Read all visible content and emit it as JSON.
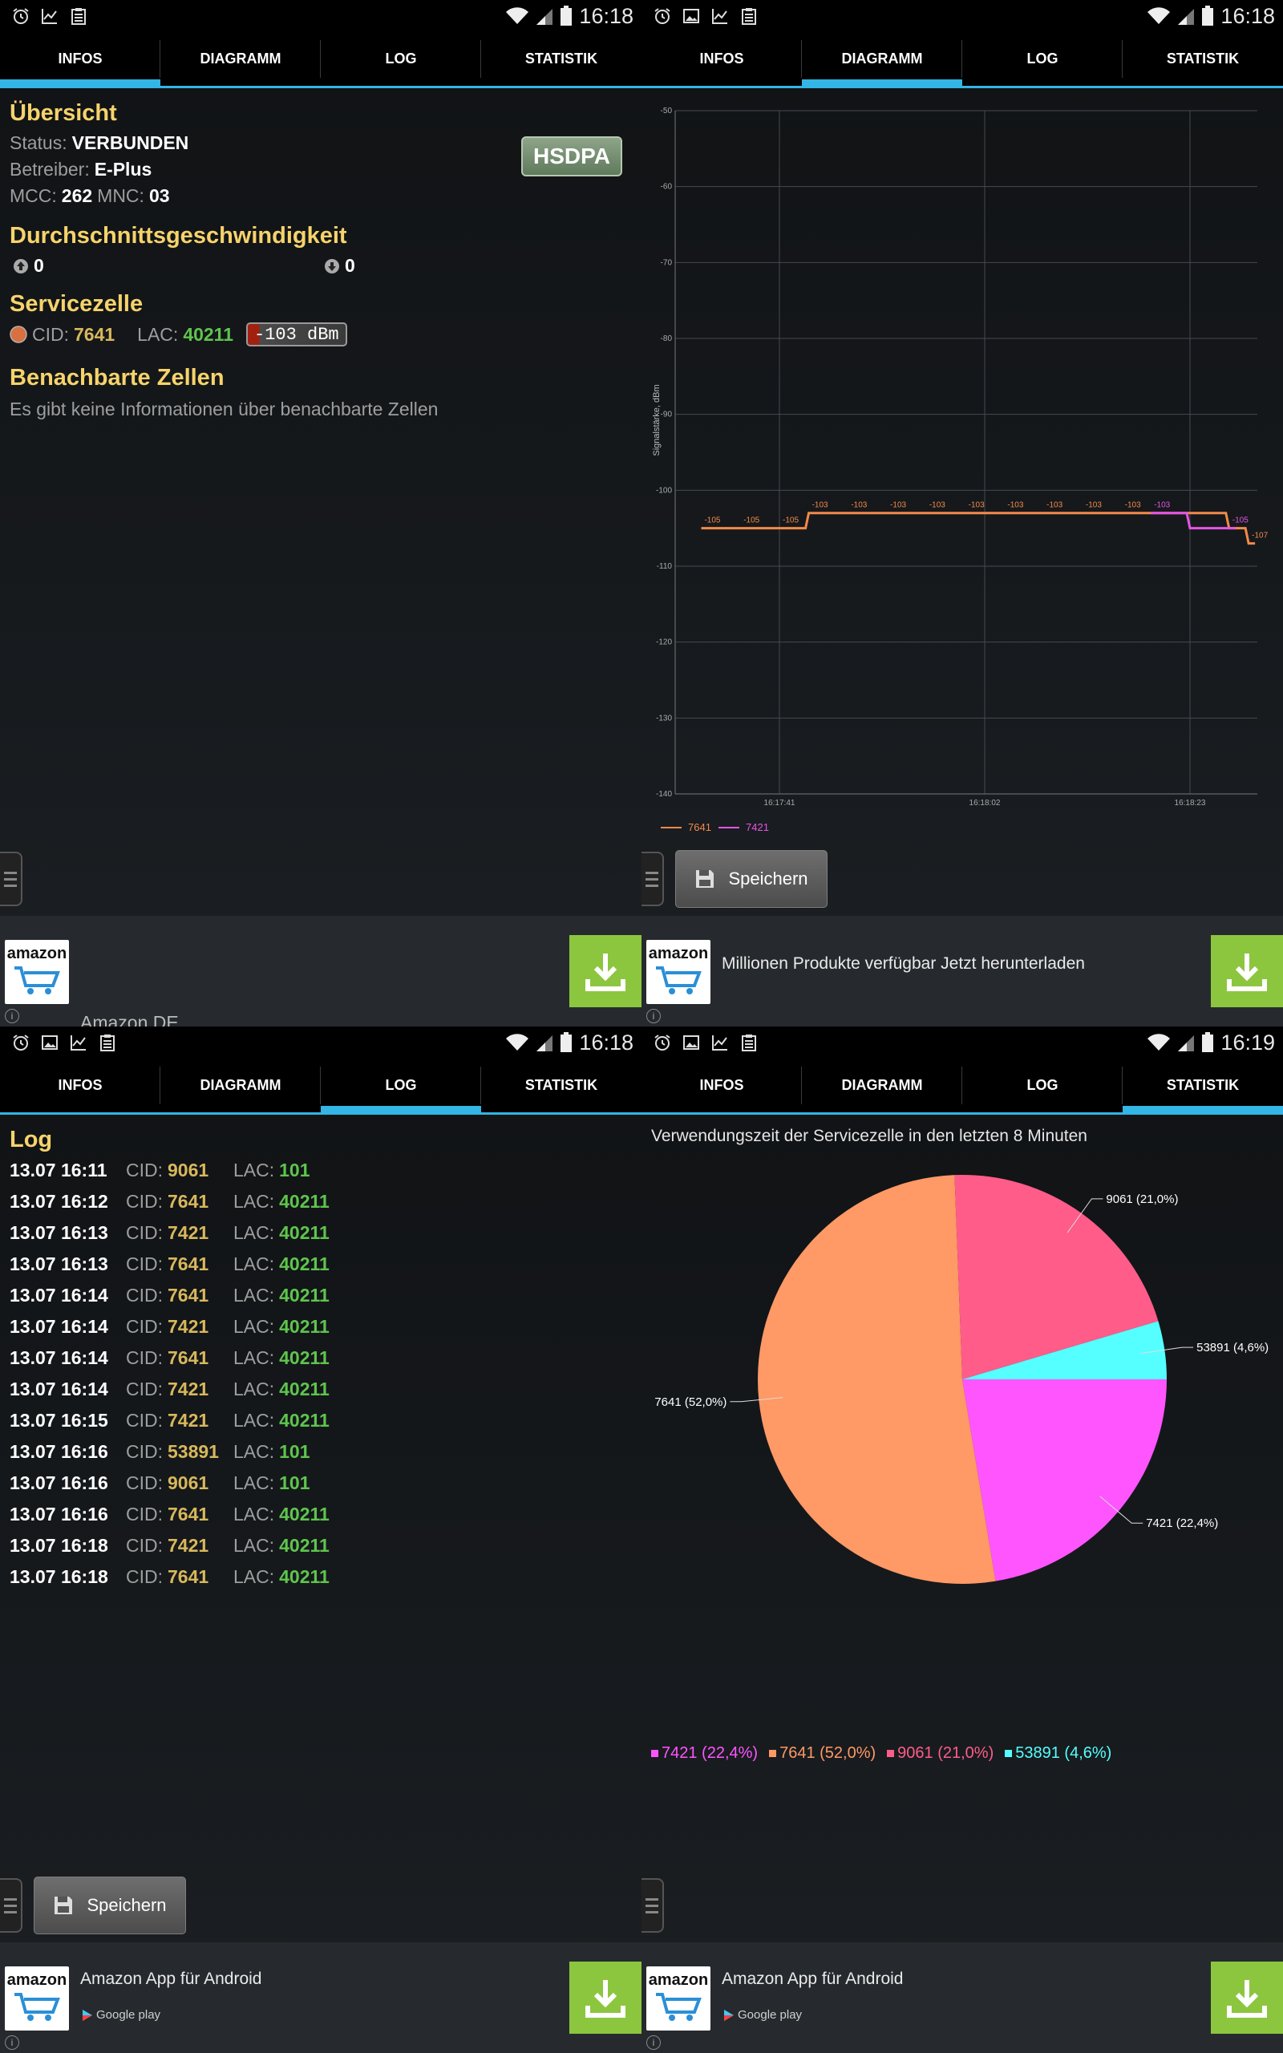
{
  "tabs": [
    "INFOS",
    "DIAGRAMM",
    "LOG",
    "STATISTIK"
  ],
  "status_bar_times": [
    "16:18",
    "16:18",
    "16:18",
    "16:19"
  ],
  "infos": {
    "overview_title": "Übersicht",
    "status_label": "Status:",
    "status_value": "VERBUNDEN",
    "operator_label": "Betreiber:",
    "operator_value": "E-Plus",
    "mcc_label": "MCC:",
    "mcc_value": "262",
    "mnc_label": "MNC:",
    "mnc_value": "03",
    "network_badge": "HSDPA",
    "speed_title": "Durchschnittsgeschwindigkeit",
    "upload_value": "0",
    "download_value": "0",
    "serving_title": "Servicezelle",
    "cid_label": "CID:",
    "cid_value": "7641",
    "lac_label": "LAC:",
    "lac_value": "40211",
    "signal_badge": "-103 dBm",
    "neighbors_title": "Benachbarte Zellen",
    "neighbors_text": "Es gibt keine Informationen über benachbarte Zellen"
  },
  "chart_data": [
    {
      "type": "line",
      "ylabel": "Signalstärke, dBm",
      "ylim": [
        -140,
        -50
      ],
      "yticks": [
        "-50",
        "-60",
        "-70",
        "-80",
        "-90",
        "-100",
        "-110",
        "-120",
        "-130",
        "-140"
      ],
      "xticks": [
        "16:17:41",
        "16:18:02",
        "16:18:23"
      ],
      "grid": true,
      "legend_position": "bottom-left",
      "series": [
        {
          "name": "7641",
          "color": "#f28a4a",
          "x": [
            "16:17:33",
            "16:17:37",
            "16:17:41",
            "16:17:44",
            "16:17:48",
            "16:17:52",
            "16:17:56",
            "16:18:00",
            "16:18:04",
            "16:18:08",
            "16:18:12",
            "16:18:16",
            "16:18:27",
            "16:18:29"
          ],
          "values": [
            -105,
            -105,
            -105,
            -103,
            -103,
            -103,
            -103,
            -103,
            -103,
            -103,
            -103,
            -103,
            -105,
            -107
          ],
          "labels": [
            "-105",
            "-105",
            "-105",
            "-103",
            "-103",
            "-103",
            "-103",
            "-103",
            "-103",
            "-103",
            "-103",
            "-103",
            "",
            "-107"
          ]
        },
        {
          "name": "7421",
          "color": "#e455e4",
          "x": [
            "16:18:19",
            "16:18:23",
            "16:18:27"
          ],
          "values": [
            -103,
            -105,
            -105
          ],
          "labels": [
            "-103",
            "",
            "-105"
          ]
        }
      ]
    },
    {
      "type": "pie",
      "title": "Verwendungszeit der Servicezelle in den letzten 8 Minuten",
      "categories": [
        "7421",
        "7641",
        "9061",
        "53891"
      ],
      "values": [
        22.4,
        52.0,
        21.0,
        4.6
      ],
      "colors": [
        "#ff55ff",
        "#ff9966",
        "#ff5c8a",
        "#55ffff"
      ],
      "slice_labels": [
        "7421 (22,4%)",
        "7641 (52,0%)",
        "9061 (21,0%)",
        "53891 (4,6%)"
      ],
      "legend_position": "bottom"
    }
  ],
  "diagram": {
    "save_label": "Speichern"
  },
  "log": {
    "title": "Log",
    "cid_label": "CID:",
    "lac_label": "LAC:",
    "rows": [
      {
        "date": "13.07 16:11",
        "cid": "9061",
        "lac": "101"
      },
      {
        "date": "13.07 16:12",
        "cid": "7641",
        "lac": "40211"
      },
      {
        "date": "13.07 16:13",
        "cid": "7421",
        "lac": "40211"
      },
      {
        "date": "13.07 16:13",
        "cid": "7641",
        "lac": "40211"
      },
      {
        "date": "13.07 16:14",
        "cid": "7641",
        "lac": "40211"
      },
      {
        "date": "13.07 16:14",
        "cid": "7421",
        "lac": "40211"
      },
      {
        "date": "13.07 16:14",
        "cid": "7641",
        "lac": "40211"
      },
      {
        "date": "13.07 16:14",
        "cid": "7421",
        "lac": "40211"
      },
      {
        "date": "13.07 16:15",
        "cid": "7421",
        "lac": "40211"
      },
      {
        "date": "13.07 16:16",
        "cid": "53891",
        "lac": "101"
      },
      {
        "date": "13.07 16:16",
        "cid": "9061",
        "lac": "101"
      },
      {
        "date": "13.07 16:16",
        "cid": "7641",
        "lac": "40211"
      },
      {
        "date": "13.07 16:18",
        "cid": "7421",
        "lac": "40211"
      },
      {
        "date": "13.07 16:18",
        "cid": "7641",
        "lac": "40211"
      }
    ],
    "save_label": "Speichern"
  },
  "ads": [
    {
      "brand": "amazon",
      "text": "Amazon.DE",
      "store": ""
    },
    {
      "brand": "amazon",
      "text": "Millionen Produkte verfügbar Jetzt herunterladen",
      "store": ""
    },
    {
      "brand": "amazon",
      "text": "Amazon App für Android",
      "store": "Google play"
    },
    {
      "brand": "amazon",
      "text": "Amazon App für Android",
      "store": "Google play"
    }
  ],
  "icons": [
    "alarm-icon",
    "image-icon",
    "chart-icon",
    "clipboard-icon",
    "wifi-icon",
    "signal-icon",
    "battery-icon",
    "upload-icon",
    "download-icon",
    "save-icon",
    "drawer-handle-icon",
    "download-arrow-icon",
    "info-icon",
    "google-play-icon"
  ],
  "colors": {
    "accent": "#33b5e5",
    "title": "#f6d36b",
    "cid": "#d8b85c",
    "lac": "#5ec54d",
    "ad_download": "#8cc63f"
  }
}
